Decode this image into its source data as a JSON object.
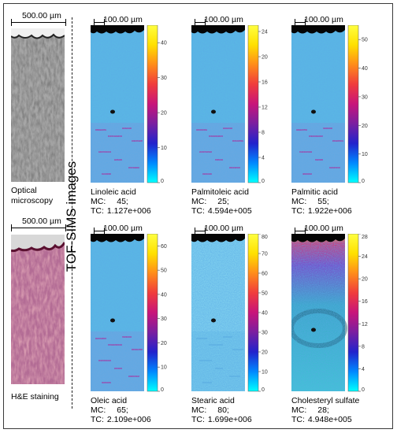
{
  "optical": {
    "scale_label": "500.00 µm",
    "caption_line1": "Optical",
    "caption_line2": "microscopy"
  },
  "he": {
    "scale_label": "500.00 µm",
    "caption": "H&E staining"
  },
  "vertical_title": "TOF-SIMS images",
  "panels": [
    {
      "scale_label": "100.00 µm",
      "name": "Linoleic acid",
      "mc_label": "MC:",
      "mc_value": "45;",
      "tc_label": "TC:",
      "tc_value": "1.127e+006",
      "cmax": 45,
      "ticks": [
        0,
        10,
        20,
        30,
        40
      ],
      "style": "blue"
    },
    {
      "scale_label": "100.00 µm",
      "name": "Palmitoleic acid",
      "mc_label": "MC:",
      "mc_value": "25;",
      "tc_label": "TC:",
      "tc_value": "4.594e+005",
      "cmax": 25,
      "ticks": [
        0,
        4,
        8,
        12,
        16,
        20,
        24
      ],
      "style": "blue"
    },
    {
      "scale_label": "100.00 µm",
      "name": "Palmitic acid",
      "mc_label": "MC:",
      "mc_value": "55;",
      "tc_label": "TC:",
      "tc_value": "1.922e+006",
      "cmax": 55,
      "ticks": [
        0,
        10,
        20,
        30,
        40,
        50
      ],
      "style": "blue"
    },
    {
      "scale_label": "100.00 µm",
      "name": "Oleic acid",
      "mc_label": "MC:",
      "mc_value": "65;",
      "tc_label": "TC:",
      "tc_value": "2.109e+006",
      "cmax": 65,
      "ticks": [
        0,
        10,
        20,
        30,
        40,
        50,
        60
      ],
      "style": "blue"
    },
    {
      "scale_label": "100.00 µm",
      "name": "Stearic acid",
      "mc_label": "MC:",
      "mc_value": "80;",
      "tc_label": "TC:",
      "tc_value": "1.699e+006",
      "cmax": 80,
      "ticks": [
        0,
        10,
        20,
        30,
        40,
        50,
        60,
        70,
        80
      ],
      "style": "light"
    },
    {
      "scale_label": "100.00 µm",
      "name": "Cholesteryl sulfate",
      "mc_label": "MC:",
      "mc_value": "28;",
      "tc_label": "TC:",
      "tc_value": "4.948e+005",
      "cmax": 28,
      "ticks": [
        0,
        4,
        8,
        12,
        16,
        20,
        24,
        28
      ],
      "style": "chol"
    }
  ],
  "colors": {
    "cmap": [
      "#00ffff",
      "#0088ff",
      "#2222cc",
      "#7a1fa0",
      "#c8157a",
      "#f03c3c",
      "#ff8c1a",
      "#ffe000",
      "#ffff40"
    ],
    "blue_base": "#5bb8e4",
    "light_base": "#7fd0ee",
    "he_pink": "#c97a9a",
    "optical_gray": "#8c8c8c"
  }
}
